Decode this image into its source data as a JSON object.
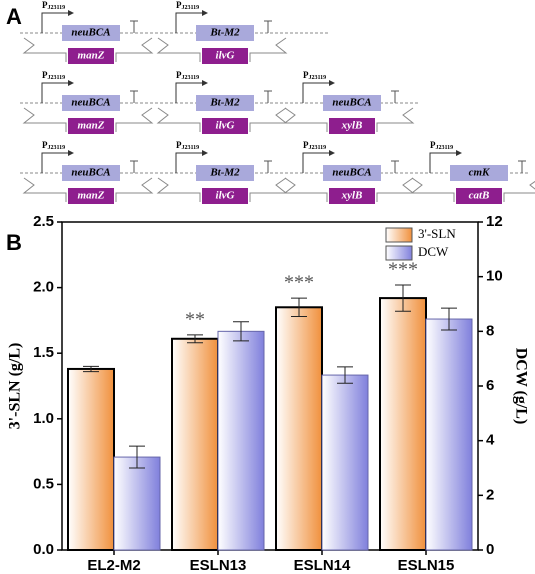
{
  "panel_a": {
    "label": "A",
    "promoter": "P",
    "promoter_sub": "J23119",
    "rows": [
      [
        {
          "gene": "neuBCA",
          "partner": "manZ"
        },
        {
          "gene": "Bt-M2",
          "partner": "ilvG"
        }
      ],
      [
        {
          "gene": "neuBCA",
          "partner": "manZ"
        },
        {
          "gene": "Bt-M2",
          "partner": "ilvG"
        },
        {
          "gene": "neuBCA",
          "partner": "xylB"
        }
      ],
      [
        {
          "gene": "neuBCA",
          "partner": "manZ"
        },
        {
          "gene": "Bt-M2",
          "partner": "ilvG"
        },
        {
          "gene": "neuBCA",
          "partner": "xylB"
        },
        {
          "gene": "cmK",
          "partner": "catB"
        }
      ]
    ]
  },
  "chart_data": {
    "panel_label": "B",
    "type": "bar",
    "categories": [
      "EL2-M2",
      "ESLN13",
      "ESLN14",
      "ESLN15"
    ],
    "series": [
      {
        "name": "3'-SLN",
        "color": "#f0903c",
        "values": [
          1.38,
          1.61,
          1.85,
          1.92
        ],
        "errors": [
          0.02,
          0.03,
          0.07,
          0.1
        ]
      },
      {
        "name": "DCW",
        "color": "#8080dc",
        "axis": "y2",
        "values": [
          3.4,
          8.0,
          6.4,
          8.45
        ],
        "errors": [
          0.4,
          0.35,
          0.3,
          0.4
        ]
      }
    ],
    "ylabel": "3'-SLN (g/L)",
    "y2label": "DCW (g/L)",
    "ylim": [
      0,
      2.5
    ],
    "yticks": [
      {
        "value": 0,
        "label": "0.0"
      },
      0.5,
      {
        "value": 1,
        "label": "1.0"
      },
      1.5,
      {
        "value": 2,
        "label": "2.0"
      },
      2.5
    ],
    "y2lim": [
      0,
      12
    ],
    "y2ticks": [
      0,
      2,
      4,
      6,
      8,
      10,
      12
    ],
    "annotations": [
      {
        "x": "ESLN13",
        "text": "**"
      },
      {
        "x": "ESLN14",
        "text": "***"
      },
      {
        "x": "ESLN15",
        "text": "***"
      }
    ],
    "legend": "upper right"
  }
}
